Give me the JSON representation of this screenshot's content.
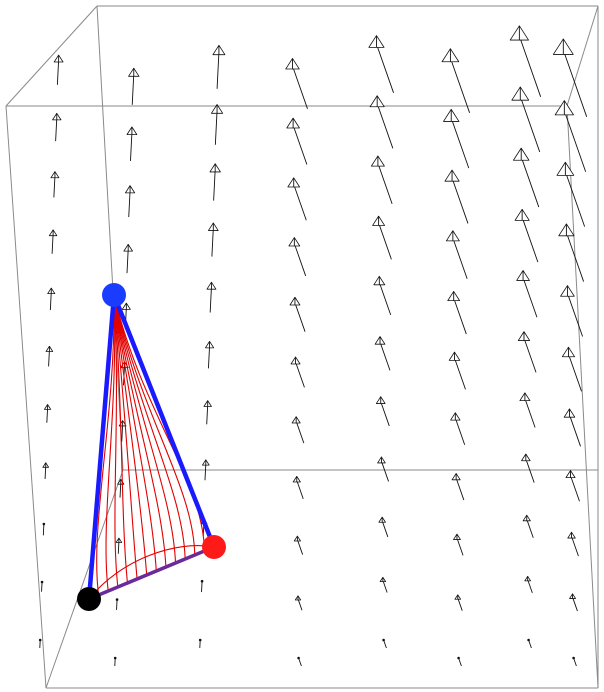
{
  "figure": {
    "kind": "3d-vector-field-with-simplex",
    "colors": {
      "box": "#8a8a8a",
      "arrows": "#111111",
      "flow_curves": "#e10000",
      "edge_main": "#1a1aff",
      "edge_bottom": "#6a2a9a",
      "vertex_top": "#1a3cff",
      "vertex_right": "#ff1a1a",
      "vertex_bottom": "#000000"
    },
    "vertices": [
      {
        "name": "top-vertex",
        "color": "#1a3cff"
      },
      {
        "name": "right-vertex",
        "color": "#ff1a1a"
      },
      {
        "name": "bottom-vertex",
        "color": "#000000"
      }
    ],
    "flow_curve_count": 12,
    "arrow_grid": {
      "columns": 8,
      "rows": 11
    }
  }
}
